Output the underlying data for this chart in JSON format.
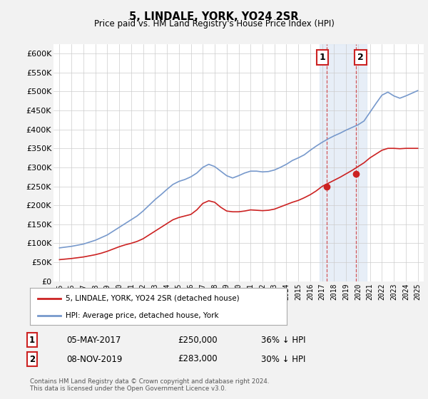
{
  "title": "5, LINDALE, YORK, YO24 2SR",
  "subtitle": "Price paid vs. HM Land Registry's House Price Index (HPI)",
  "ylabel_ticks": [
    "£0",
    "£50K",
    "£100K",
    "£150K",
    "£200K",
    "£250K",
    "£300K",
    "£350K",
    "£400K",
    "£450K",
    "£500K",
    "£550K",
    "£600K"
  ],
  "ytick_values": [
    0,
    50000,
    100000,
    150000,
    200000,
    250000,
    300000,
    350000,
    400000,
    450000,
    500000,
    550000,
    600000
  ],
  "ylim": [
    0,
    625000
  ],
  "xlim_start": 1994.5,
  "xlim_end": 2025.5,
  "hpi_color": "#7799cc",
  "price_color": "#cc2222",
  "marker1_date": 2017.35,
  "marker1_price": 250000,
  "marker1_label": "1",
  "marker2_date": 2019.85,
  "marker2_price": 283000,
  "marker2_label": "2",
  "shade_x1": 2016.8,
  "shade_x2": 2020.7,
  "legend_entry1": "5, LINDALE, YORK, YO24 2SR (detached house)",
  "legend_entry2": "HPI: Average price, detached house, York",
  "table_row1": [
    "1",
    "05-MAY-2017",
    "£250,000",
    "36% ↓ HPI"
  ],
  "table_row2": [
    "2",
    "08-NOV-2019",
    "£283,000",
    "30% ↓ HPI"
  ],
  "footnote": "Contains HM Land Registry data © Crown copyright and database right 2024.\nThis data is licensed under the Open Government Licence v3.0.",
  "background_color": "#f2f2f2",
  "plot_bg_color": "#ffffff"
}
